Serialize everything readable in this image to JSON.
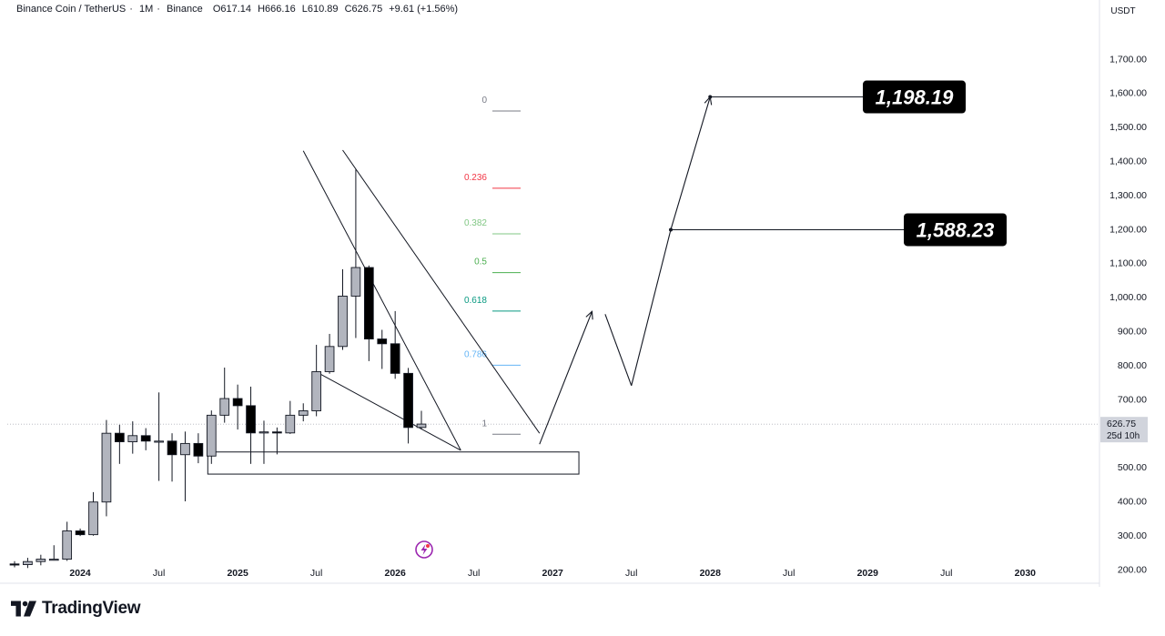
{
  "header": {
    "symbol": "Binance Coin / TetherUS",
    "interval": "1M",
    "exchange": "Binance",
    "open": "O617.14",
    "high": "H666.16",
    "low": "L610.89",
    "close": "C626.75",
    "change": "+9.61 (+1.56%)"
  },
  "currency": "USDT",
  "brand": "TradingView",
  "current_price": {
    "value": "626.75",
    "countdown": "25d 10h"
  },
  "targets": [
    {
      "label": "1,588.23",
      "value": 1588.23
    },
    {
      "label": "1,198.19",
      "value": 1198.19
    }
  ],
  "colors": {
    "bull_fill": "#b2b5be",
    "bear_fill": "#000000",
    "accent": "#9c27b0"
  },
  "chart_data": {
    "type": "candlestick",
    "interval": "1M",
    "y_ticks": [
      {
        "value": 200,
        "label": "200.00"
      },
      {
        "value": 300,
        "label": "300.00"
      },
      {
        "value": 400,
        "label": "400.00"
      },
      {
        "value": 500,
        "label": "500.00"
      },
      {
        "value": 600,
        "label": "600.00"
      },
      {
        "value": 700,
        "label": "700.00"
      },
      {
        "value": 800,
        "label": "800.00"
      },
      {
        "value": 900,
        "label": "900.00"
      },
      {
        "value": 1000,
        "label": "1,000.00"
      },
      {
        "value": 1100,
        "label": "1,100.00"
      },
      {
        "value": 1200,
        "label": "1,200.00"
      },
      {
        "value": 1300,
        "label": "1,300.00"
      },
      {
        "value": 1400,
        "label": "1,400.00"
      },
      {
        "value": 1500,
        "label": "1,500.00"
      },
      {
        "value": 1600,
        "label": "1,600.00"
      },
      {
        "value": 1700,
        "label": "1,700.00"
      }
    ],
    "ylim": [
      162,
      1825
    ],
    "x_ticks": [
      {
        "date": "2024-01",
        "label": "2024",
        "bold": true
      },
      {
        "date": "2024-07",
        "label": "Jul",
        "bold": false
      },
      {
        "date": "2025-01",
        "label": "2025",
        "bold": true
      },
      {
        "date": "2025-07",
        "label": "Jul",
        "bold": false
      },
      {
        "date": "2026-01",
        "label": "2026",
        "bold": true
      },
      {
        "date": "2026-07",
        "label": "Jul",
        "bold": false
      },
      {
        "date": "2027-01",
        "label": "2027",
        "bold": true
      },
      {
        "date": "2027-07",
        "label": "Jul",
        "bold": false
      },
      {
        "date": "2028-01",
        "label": "2028",
        "bold": true
      },
      {
        "date": "2028-07",
        "label": "Jul",
        "bold": false
      },
      {
        "date": "2029-01",
        "label": "2029",
        "bold": true
      },
      {
        "date": "2029-07",
        "label": "Jul",
        "bold": false
      },
      {
        "date": "2030-01",
        "label": "2030",
        "bold": true
      }
    ],
    "xlim": [
      "2023-08",
      "2030-05"
    ],
    "candles": [
      {
        "date": "2023-08",
        "o": 216,
        "h": 224,
        "l": 206,
        "c": 214
      },
      {
        "date": "2023-09",
        "o": 214,
        "h": 234,
        "l": 204,
        "c": 223
      },
      {
        "date": "2023-10",
        "o": 223,
        "h": 243,
        "l": 212,
        "c": 230
      },
      {
        "date": "2023-11",
        "o": 230,
        "h": 271,
        "l": 226,
        "c": 230
      },
      {
        "date": "2023-12",
        "o": 230,
        "h": 340,
        "l": 225,
        "c": 313
      },
      {
        "date": "2024-01",
        "o": 313,
        "h": 320,
        "l": 298,
        "c": 302
      },
      {
        "date": "2024-02",
        "o": 302,
        "h": 427,
        "l": 299,
        "c": 398
      },
      {
        "date": "2024-03",
        "o": 398,
        "h": 639,
        "l": 356,
        "c": 600
      },
      {
        "date": "2024-04",
        "o": 600,
        "h": 625,
        "l": 510,
        "c": 575
      },
      {
        "date": "2024-05",
        "o": 575,
        "h": 635,
        "l": 540,
        "c": 593
      },
      {
        "date": "2024-06",
        "o": 593,
        "h": 615,
        "l": 550,
        "c": 577
      },
      {
        "date": "2024-07",
        "o": 577,
        "h": 720,
        "l": 460,
        "c": 577
      },
      {
        "date": "2024-08",
        "o": 577,
        "h": 600,
        "l": 458,
        "c": 537
      },
      {
        "date": "2024-09",
        "o": 537,
        "h": 605,
        "l": 400,
        "c": 570
      },
      {
        "date": "2024-10",
        "o": 570,
        "h": 600,
        "l": 512,
        "c": 533
      },
      {
        "date": "2024-11",
        "o": 533,
        "h": 667,
        "l": 510,
        "c": 653
      },
      {
        "date": "2024-12",
        "o": 653,
        "h": 793,
        "l": 631,
        "c": 702
      },
      {
        "date": "2025-01",
        "o": 702,
        "h": 743,
        "l": 611,
        "c": 681
      },
      {
        "date": "2025-02",
        "o": 681,
        "h": 737,
        "l": 510,
        "c": 601
      },
      {
        "date": "2025-03",
        "o": 601,
        "h": 637,
        "l": 510,
        "c": 604
      },
      {
        "date": "2025-04",
        "o": 604,
        "h": 617,
        "l": 538,
        "c": 601
      },
      {
        "date": "2025-05",
        "o": 601,
        "h": 695,
        "l": 598,
        "c": 653
      },
      {
        "date": "2025-06",
        "o": 653,
        "h": 688,
        "l": 635,
        "c": 666
      },
      {
        "date": "2025-07",
        "o": 666,
        "h": 860,
        "l": 650,
        "c": 781
      },
      {
        "date": "2025-08",
        "o": 781,
        "h": 892,
        "l": 775,
        "c": 855
      },
      {
        "date": "2025-09",
        "o": 855,
        "h": 1082,
        "l": 845,
        "c": 1003
      },
      {
        "date": "2025-10",
        "o": 1003,
        "h": 1375,
        "l": 880,
        "c": 1087
      },
      {
        "date": "2025-11",
        "o": 1087,
        "h": 1093,
        "l": 812,
        "c": 877
      },
      {
        "date": "2025-12",
        "o": 877,
        "h": 904,
        "l": 789,
        "c": 863
      },
      {
        "date": "2026-01",
        "o": 863,
        "h": 959,
        "l": 760,
        "c": 776
      },
      {
        "date": "2026-02",
        "o": 776,
        "h": 792,
        "l": 570,
        "c": 617
      },
      {
        "date": "2026-03",
        "o": 617,
        "h": 666,
        "l": 611,
        "c": 627
      }
    ],
    "fibonacci": [
      {
        "ratio": "0",
        "price": 1547,
        "color": "#787b86"
      },
      {
        "ratio": "0.236",
        "price": 1320,
        "color": "#f23645"
      },
      {
        "ratio": "0.382",
        "price": 1186,
        "color": "#81c784"
      },
      {
        "ratio": "0.5",
        "price": 1072,
        "color": "#4caf50"
      },
      {
        "ratio": "0.618",
        "price": 959,
        "color": "#089981"
      },
      {
        "ratio": "0.786",
        "price": 800,
        "color": "#64b5f6"
      },
      {
        "ratio": "1",
        "price": 597,
        "color": "#787b86"
      }
    ],
    "support_zone": {
      "from": "2024-11",
      "to": "2027-03",
      "low": 480,
      "high": 545
    },
    "wedge_lines": [
      {
        "points": [
          {
            "date": "2025-06",
            "price": 1430
          },
          {
            "date": "2026-06",
            "price": 550
          }
        ]
      },
      {
        "points": [
          {
            "date": "2025-09",
            "price": 1432
          },
          {
            "date": "2026-12",
            "price": 600
          }
        ]
      },
      {
        "points": [
          {
            "date": "2025-07",
            "price": 780
          },
          {
            "date": "2026-06",
            "price": 550
          }
        ]
      }
    ],
    "projection_path": [
      {
        "date": "2026-12",
        "price": 568
      },
      {
        "date": "2027-04",
        "price": 958
      },
      {
        "date": "2027-05",
        "price": 950
      },
      {
        "date": "2027-07",
        "price": 740
      },
      {
        "date": "2027-10",
        "price": 1198.19
      },
      {
        "date": "2028-01",
        "price": 1588.23
      }
    ],
    "target_lines": [
      {
        "from": "2027-10",
        "price": 1198.19,
        "label": "1,198.19"
      },
      {
        "from": "2028-01",
        "price": 1588.23,
        "label": "1,588.23"
      }
    ]
  }
}
